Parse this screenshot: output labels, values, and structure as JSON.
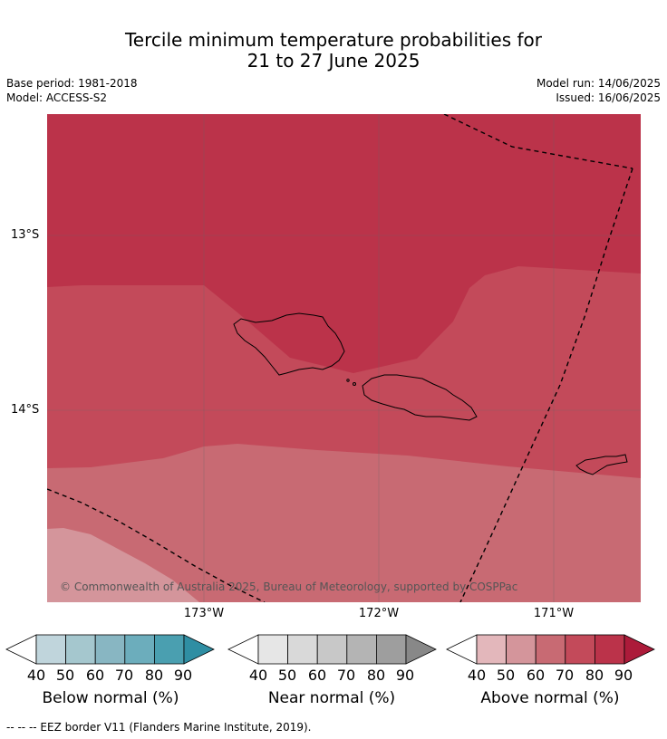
{
  "title": {
    "line1": "Tercile minimum temperature probabilities for",
    "line2": "21 to 27 June 2025"
  },
  "meta": {
    "base_period": "Base period: 1981-2018",
    "model": "Model: ACCESS-S2",
    "model_run": "Model run: 14/06/2025",
    "issued": "Issued: 16/06/2025"
  },
  "map": {
    "lat_labels": [
      "13°S",
      "14°S"
    ],
    "lon_labels": [
      "173°W",
      "172°W",
      "171°W"
    ],
    "copyright": "© Commonwealth of Australia 2025, Bureau of Meteorology, supported by COSPPac",
    "colors": {
      "p80": "#bb334a",
      "p70": "#c34a5a",
      "p60": "#c86a73",
      "p50": "#d4959b"
    }
  },
  "colorbars": [
    {
      "label": "Below normal (%)",
      "ticks": [
        "40",
        "50",
        "60",
        "70",
        "80",
        "90"
      ],
      "colors": [
        "#c0d5dc",
        "#a5c7ce",
        "#88b6c2",
        "#6cadbc",
        "#4a9fb0",
        "#2f8ea3"
      ]
    },
    {
      "label": "Near normal (%)",
      "ticks": [
        "40",
        "50",
        "60",
        "70",
        "80",
        "90"
      ],
      "colors": [
        "#e6e6e6",
        "#d9d9d9",
        "#c8c8c8",
        "#b4b4b4",
        "#9e9e9e",
        "#888888"
      ]
    },
    {
      "label": "Above normal (%)",
      "ticks": [
        "40",
        "50",
        "60",
        "70",
        "80",
        "90"
      ],
      "colors": [
        "#e3b7bb",
        "#d4959b",
        "#c86a73",
        "#c34a5a",
        "#bb334a",
        "#ac1b3a"
      ]
    }
  ],
  "footer": "--  --  -- EEZ border V11 (Flanders Marine Institute, 2019)."
}
